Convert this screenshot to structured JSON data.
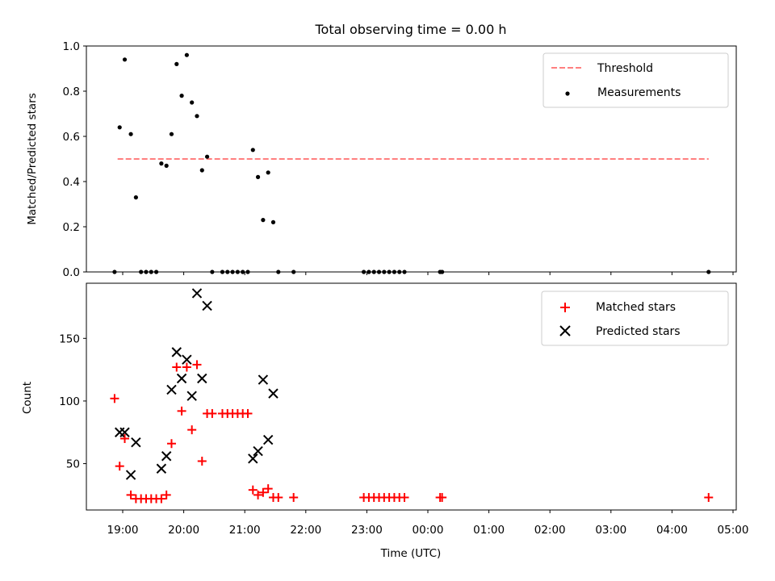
{
  "chart_data": [
    {
      "type": "scatter",
      "title": "Total observing time = 0.00 h",
      "ylabel": "Matched/Predicted stars",
      "ylim": [
        0,
        1.0
      ],
      "yticks": [
        "0.0",
        "0.2",
        "0.4",
        "0.6",
        "0.8",
        "1.0"
      ],
      "legend_position": "top-right",
      "threshold": {
        "name": "Threshold",
        "y": 0.5,
        "x_start": "18:55",
        "x_end": "04:36",
        "color": "#ff7f7f"
      },
      "series": [
        {
          "name": "Measurements",
          "color": "#000000",
          "points": [
            [
              "18:52",
              0
            ],
            [
              "18:57",
              0.64
            ],
            [
              "19:02",
              0.94
            ],
            [
              "19:08",
              0.61
            ],
            [
              "19:13",
              0.33
            ],
            [
              "19:18",
              0
            ],
            [
              "19:23",
              0
            ],
            [
              "19:28",
              0
            ],
            [
              "19:33",
              0
            ],
            [
              "19:38",
              0.48
            ],
            [
              "19:43",
              0.47
            ],
            [
              "19:48",
              0.61
            ],
            [
              "19:53",
              0.92
            ],
            [
              "19:58",
              0.78
            ],
            [
              "20:03",
              0.96
            ],
            [
              "20:08",
              0.75
            ],
            [
              "20:13",
              0.69
            ],
            [
              "20:18",
              0.45
            ],
            [
              "20:23",
              0.51
            ],
            [
              "20:28",
              0
            ],
            [
              "20:38",
              0
            ],
            [
              "20:43",
              0
            ],
            [
              "20:48",
              0
            ],
            [
              "20:53",
              0
            ],
            [
              "20:58",
              0
            ],
            [
              "21:03",
              0
            ],
            [
              "21:08",
              0.54
            ],
            [
              "21:13",
              0.42
            ],
            [
              "21:18",
              0.23
            ],
            [
              "21:23",
              0.44
            ],
            [
              "21:28",
              0.22
            ],
            [
              "21:33",
              0
            ],
            [
              "21:48",
              0
            ],
            [
              "22:57",
              0
            ],
            [
              "23:02",
              0
            ],
            [
              "23:07",
              0
            ],
            [
              "23:12",
              0
            ],
            [
              "23:17",
              0
            ],
            [
              "23:22",
              0
            ],
            [
              "23:27",
              0
            ],
            [
              "23:32",
              0
            ],
            [
              "23:37",
              0
            ],
            [
              "00:12",
              0
            ],
            [
              "00:14",
              0
            ],
            [
              "04:36",
              0
            ]
          ]
        }
      ]
    },
    {
      "type": "scatter",
      "xlabel": "Time (UTC)",
      "ylabel": "Count",
      "ylim": [
        13,
        194
      ],
      "yticks": [
        50,
        100,
        150
      ],
      "xticks": [
        "19:00",
        "20:00",
        "21:00",
        "22:00",
        "23:00",
        "00:00",
        "01:00",
        "02:00",
        "03:00",
        "04:00",
        "05:00"
      ],
      "legend_position": "top-right",
      "series": [
        {
          "name": "Matched stars",
          "marker": "plus",
          "color": "#ff0000",
          "points": [
            [
              "18:52",
              102
            ],
            [
              "18:57",
              48
            ],
            [
              "19:02",
              70
            ],
            [
              "19:08",
              25
            ],
            [
              "19:13",
              22
            ],
            [
              "19:18",
              22
            ],
            [
              "19:23",
              22
            ],
            [
              "19:28",
              22
            ],
            [
              "19:33",
              22
            ],
            [
              "19:38",
              22
            ],
            [
              "19:43",
              25
            ],
            [
              "19:48",
              66
            ],
            [
              "19:53",
              127
            ],
            [
              "19:58",
              92
            ],
            [
              "20:03",
              127
            ],
            [
              "20:08",
              77
            ],
            [
              "20:13",
              129
            ],
            [
              "20:18",
              52
            ],
            [
              "20:23",
              90
            ],
            [
              "20:28",
              90
            ],
            [
              "20:38",
              90
            ],
            [
              "20:43",
              90
            ],
            [
              "20:48",
              90
            ],
            [
              "20:53",
              90
            ],
            [
              "20:58",
              90
            ],
            [
              "21:03",
              90
            ],
            [
              "21:08",
              29
            ],
            [
              "21:13",
              25
            ],
            [
              "21:18",
              27
            ],
            [
              "21:23",
              30
            ],
            [
              "21:28",
              23
            ],
            [
              "21:33",
              23
            ],
            [
              "21:48",
              23
            ],
            [
              "22:57",
              23
            ],
            [
              "23:02",
              23
            ],
            [
              "23:07",
              23
            ],
            [
              "23:12",
              23
            ],
            [
              "23:17",
              23
            ],
            [
              "23:22",
              23
            ],
            [
              "23:27",
              23
            ],
            [
              "23:32",
              23
            ],
            [
              "23:37",
              23
            ],
            [
              "00:12",
              23
            ],
            [
              "00:14",
              23
            ],
            [
              "04:36",
              23
            ]
          ]
        },
        {
          "name": "Predicted stars",
          "marker": "x",
          "color": "#000000",
          "points": [
            [
              "18:57",
              75
            ],
            [
              "19:02",
              75
            ],
            [
              "19:08",
              41
            ],
            [
              "19:13",
              67
            ],
            [
              "19:38",
              46
            ],
            [
              "19:43",
              56
            ],
            [
              "19:48",
              109
            ],
            [
              "19:53",
              139
            ],
            [
              "19:58",
              118
            ],
            [
              "20:03",
              133
            ],
            [
              "20:08",
              104
            ],
            [
              "20:13",
              186
            ],
            [
              "20:18",
              118
            ],
            [
              "20:23",
              176
            ],
            [
              "21:08",
              54
            ],
            [
              "21:13",
              60
            ],
            [
              "21:18",
              117
            ],
            [
              "21:23",
              69
            ],
            [
              "21:28",
              106
            ]
          ]
        }
      ]
    }
  ]
}
